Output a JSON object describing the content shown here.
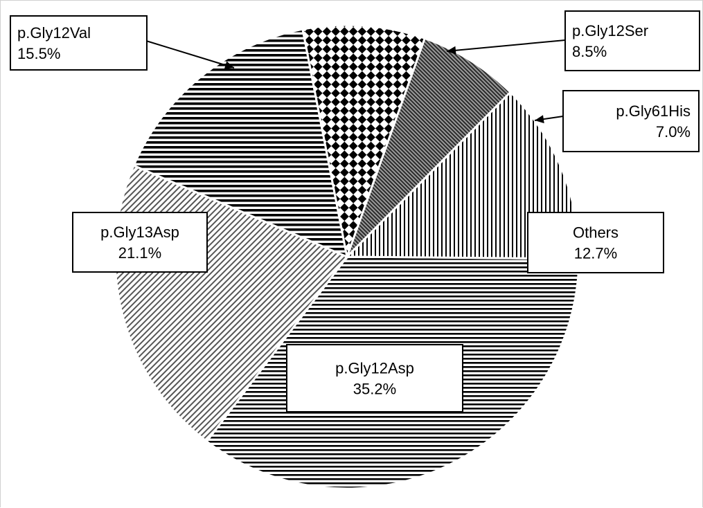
{
  "chart_data": {
    "type": "pie",
    "slices": [
      {
        "name": "p.Gly12Asp",
        "value": 35.2,
        "value_label": "35.2%",
        "pattern": "horizontal-lines"
      },
      {
        "name": "p.Gly13Asp",
        "value": 21.1,
        "value_label": "21.1%",
        "pattern": "diagonal-lines"
      },
      {
        "name": "p.Gly12Val",
        "value": 15.5,
        "value_label": "15.5%",
        "pattern": "thick-horizontal-lines"
      },
      {
        "name": "p.Gly12Ser",
        "value": 8.5,
        "value_label": "8.5%",
        "pattern": "diamond-checker"
      },
      {
        "name": "p.Gly61His",
        "value": 7.0,
        "value_label": "7.0%",
        "pattern": "dense-diagonal-dark"
      },
      {
        "name": "Others",
        "value": 12.7,
        "value_label": "12.7%",
        "pattern": "vertical-lines"
      }
    ],
    "legend": "none",
    "colors": {
      "ink": "#000000",
      "background": "#ffffff"
    }
  }
}
